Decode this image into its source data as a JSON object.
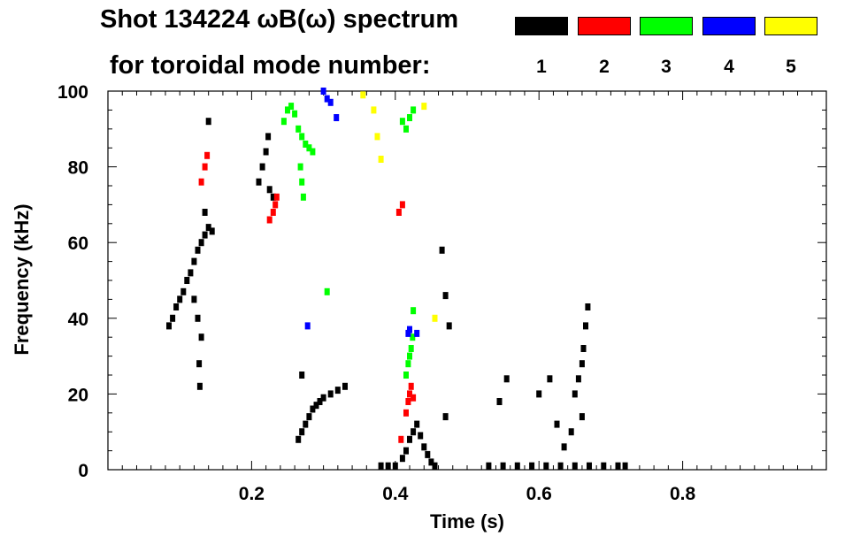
{
  "header": {
    "title_line1": "Shot 134224 ωB(ω) spectrum",
    "title_line2": "for toroidal mode number:"
  },
  "legend": [
    {
      "label": "1",
      "color": "#000000"
    },
    {
      "label": "2",
      "color": "#ff0000"
    },
    {
      "label": "3",
      "color": "#00ff00"
    },
    {
      "label": "4",
      "color": "#0000ff"
    },
    {
      "label": "5",
      "color": "#ffff00"
    }
  ],
  "chart_data": {
    "type": "heatmap",
    "title": "Shot 134224 ωB(ω) spectrum",
    "subtitle": "for toroidal mode number:",
    "xlabel": "Time (s)",
    "ylabel": "Frequency (kHz)",
    "xlim": [
      0.0,
      1.0
    ],
    "ylim": [
      0,
      100
    ],
    "x_ticks": [
      0.2,
      0.4,
      0.6,
      0.8
    ],
    "x_tick_labels": [
      "0.2",
      "0.4",
      "0.6",
      "0.8"
    ],
    "y_ticks": [
      0,
      20,
      40,
      60,
      80,
      100
    ],
    "y_tick_labels": [
      "0",
      "20",
      "40",
      "60",
      "80",
      "100"
    ],
    "grid": false,
    "legend_position": "top-right",
    "series": [
      {
        "mode": 1,
        "color": "#000000",
        "points": [
          [
            0.085,
            38
          ],
          [
            0.09,
            40
          ],
          [
            0.095,
            43
          ],
          [
            0.1,
            45
          ],
          [
            0.105,
            47
          ],
          [
            0.11,
            50
          ],
          [
            0.115,
            52
          ],
          [
            0.12,
            55
          ],
          [
            0.125,
            58
          ],
          [
            0.13,
            60
          ],
          [
            0.135,
            62
          ],
          [
            0.14,
            64
          ],
          [
            0.145,
            63
          ],
          [
            0.12,
            45
          ],
          [
            0.125,
            40
          ],
          [
            0.13,
            35
          ],
          [
            0.127,
            28
          ],
          [
            0.128,
            22
          ],
          [
            0.135,
            68
          ],
          [
            0.14,
            92
          ],
          [
            0.21,
            76
          ],
          [
            0.215,
            80
          ],
          [
            0.22,
            84
          ],
          [
            0.223,
            88
          ],
          [
            0.225,
            74
          ],
          [
            0.23,
            72
          ],
          [
            0.265,
            8
          ],
          [
            0.27,
            10
          ],
          [
            0.275,
            12
          ],
          [
            0.28,
            14
          ],
          [
            0.285,
            16
          ],
          [
            0.29,
            17
          ],
          [
            0.295,
            18
          ],
          [
            0.3,
            19
          ],
          [
            0.31,
            20
          ],
          [
            0.32,
            21
          ],
          [
            0.33,
            22
          ],
          [
            0.27,
            25
          ],
          [
            0.38,
            1
          ],
          [
            0.39,
            1
          ],
          [
            0.4,
            1
          ],
          [
            0.41,
            3
          ],
          [
            0.415,
            5
          ],
          [
            0.42,
            8
          ],
          [
            0.425,
            10
          ],
          [
            0.43,
            12
          ],
          [
            0.435,
            9
          ],
          [
            0.44,
            6
          ],
          [
            0.445,
            4
          ],
          [
            0.45,
            2
          ],
          [
            0.455,
            1
          ],
          [
            0.465,
            58
          ],
          [
            0.47,
            46
          ],
          [
            0.475,
            38
          ],
          [
            0.47,
            14
          ],
          [
            0.53,
            1
          ],
          [
            0.55,
            1
          ],
          [
            0.57,
            1
          ],
          [
            0.59,
            1
          ],
          [
            0.61,
            1
          ],
          [
            0.63,
            1
          ],
          [
            0.65,
            1
          ],
          [
            0.67,
            1
          ],
          [
            0.69,
            1
          ],
          [
            0.71,
            1
          ],
          [
            0.72,
            1
          ],
          [
            0.545,
            18
          ],
          [
            0.555,
            24
          ],
          [
            0.6,
            20
          ],
          [
            0.615,
            24
          ],
          [
            0.625,
            12
          ],
          [
            0.635,
            6
          ],
          [
            0.645,
            10
          ],
          [
            0.65,
            20
          ],
          [
            0.655,
            24
          ],
          [
            0.66,
            28
          ],
          [
            0.662,
            32
          ],
          [
            0.665,
            38
          ],
          [
            0.668,
            43
          ],
          [
            0.66,
            14
          ]
        ]
      },
      {
        "mode": 2,
        "color": "#ff0000",
        "points": [
          [
            0.13,
            76
          ],
          [
            0.135,
            80
          ],
          [
            0.138,
            83
          ],
          [
            0.225,
            66
          ],
          [
            0.23,
            68
          ],
          [
            0.233,
            70
          ],
          [
            0.235,
            72
          ],
          [
            0.405,
            68
          ],
          [
            0.41,
            70
          ],
          [
            0.415,
            15
          ],
          [
            0.418,
            18
          ],
          [
            0.42,
            20
          ],
          [
            0.422,
            22
          ],
          [
            0.425,
            19
          ],
          [
            0.408,
            8
          ]
        ]
      },
      {
        "mode": 3,
        "color": "#00ff00",
        "points": [
          [
            0.245,
            92
          ],
          [
            0.25,
            95
          ],
          [
            0.255,
            96
          ],
          [
            0.26,
            94
          ],
          [
            0.265,
            90
          ],
          [
            0.27,
            88
          ],
          [
            0.275,
            86
          ],
          [
            0.28,
            85
          ],
          [
            0.285,
            84
          ],
          [
            0.268,
            80
          ],
          [
            0.27,
            76
          ],
          [
            0.272,
            72
          ],
          [
            0.305,
            47
          ],
          [
            0.41,
            92
          ],
          [
            0.415,
            90
          ],
          [
            0.42,
            93
          ],
          [
            0.425,
            95
          ],
          [
            0.418,
            28
          ],
          [
            0.42,
            30
          ],
          [
            0.422,
            32
          ],
          [
            0.424,
            35
          ],
          [
            0.415,
            25
          ],
          [
            0.425,
            42
          ]
        ]
      },
      {
        "mode": 4,
        "color": "#0000ff",
        "points": [
          [
            0.3,
            100
          ],
          [
            0.305,
            98
          ],
          [
            0.31,
            97
          ],
          [
            0.318,
            93
          ],
          [
            0.278,
            38
          ],
          [
            0.418,
            36
          ],
          [
            0.42,
            37
          ],
          [
            0.43,
            36
          ]
        ]
      },
      {
        "mode": 5,
        "color": "#ffff00",
        "points": [
          [
            0.37,
            95
          ],
          [
            0.375,
            88
          ],
          [
            0.38,
            82
          ],
          [
            0.355,
            99
          ],
          [
            0.44,
            96
          ],
          [
            0.455,
            40
          ]
        ]
      }
    ]
  }
}
